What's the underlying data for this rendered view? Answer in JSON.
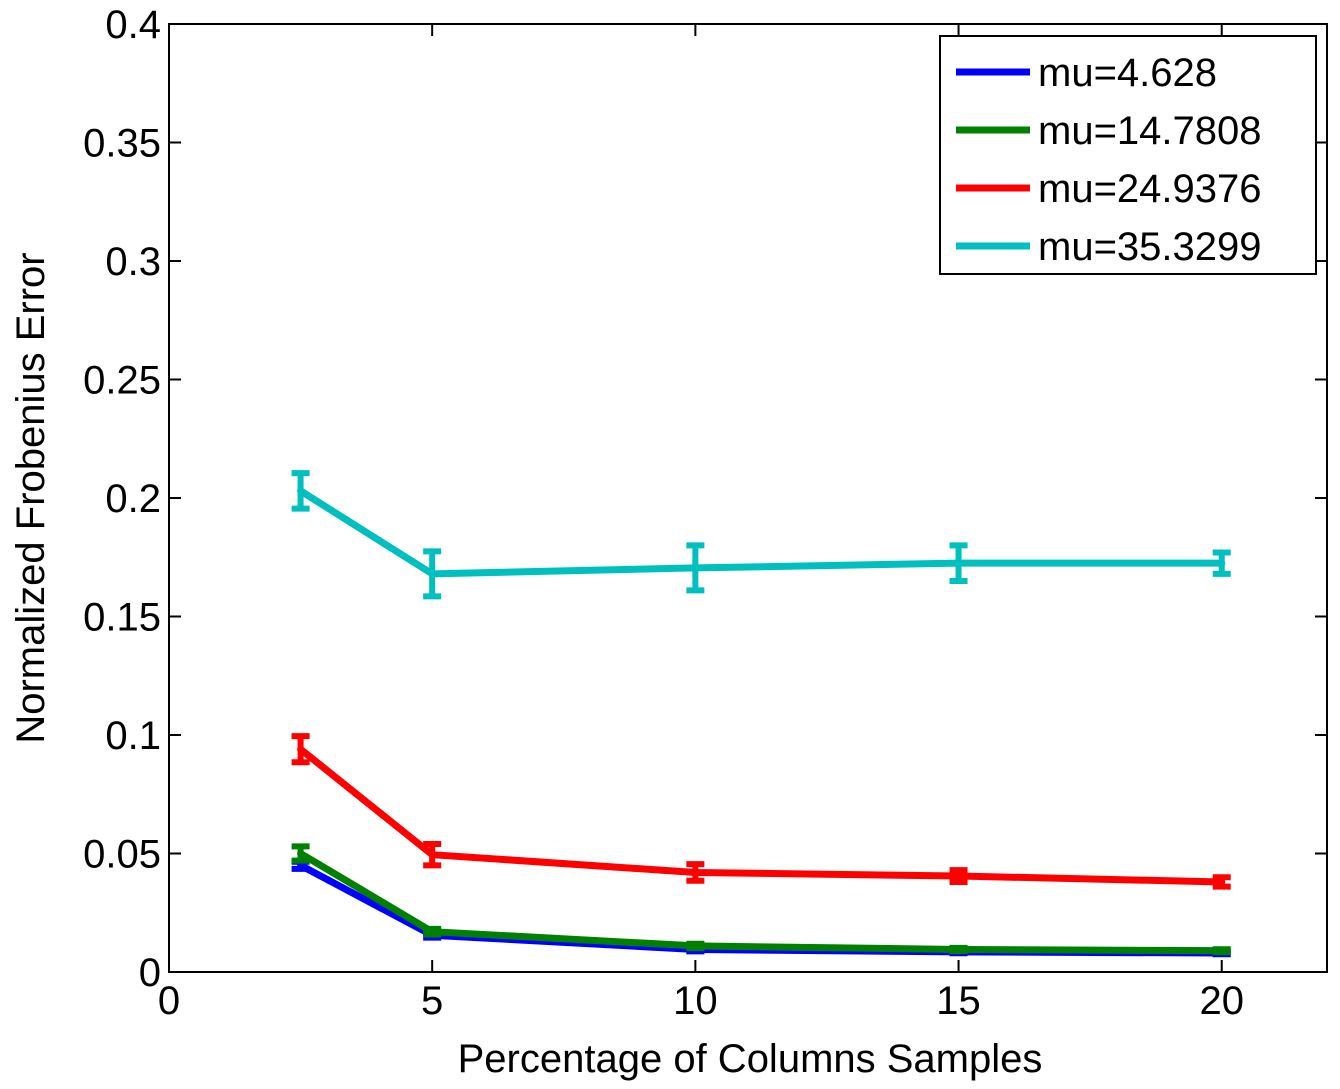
{
  "chart_data": {
    "type": "line",
    "xlabel": "Percentage of Columns Samples",
    "ylabel": "Normalized Frobenius Error",
    "xlim": [
      0,
      22
    ],
    "ylim": [
      0,
      0.4
    ],
    "x_ticks": [
      0,
      5,
      10,
      15,
      20
    ],
    "x_tick_labels": [
      "0",
      "5",
      "10",
      "15",
      "20"
    ],
    "y_ticks": [
      0,
      0.05,
      0.1,
      0.15,
      0.2,
      0.25,
      0.3,
      0.35,
      0.4
    ],
    "y_tick_labels": [
      "0",
      "0.05",
      "0.1",
      "0.15",
      "0.2",
      "0.25",
      "0.3",
      "0.35",
      "0.4"
    ],
    "grid": false,
    "legend_position": "top-right",
    "x": [
      2.5,
      5,
      10,
      15,
      20
    ],
    "series": [
      {
        "name": "mu=4.628",
        "color": "#0000ff",
        "values": [
          0.045,
          0.0155,
          0.0095,
          0.0085,
          0.008
        ],
        "errors": [
          0.0015,
          0.001,
          0.0008,
          0.0006,
          0.0005
        ]
      },
      {
        "name": "mu=14.7808",
        "color": "#008000",
        "values": [
          0.05,
          0.017,
          0.011,
          0.0095,
          0.009
        ],
        "errors": [
          0.003,
          0.0012,
          0.0009,
          0.0007,
          0.0006
        ]
      },
      {
        "name": "mu=24.9376",
        "color": "#ff0000",
        "values": [
          0.094,
          0.0495,
          0.042,
          0.0405,
          0.038
        ],
        "errors": [
          0.0055,
          0.0045,
          0.0035,
          0.0025,
          0.002
        ]
      },
      {
        "name": "mu=35.3299",
        "color": "#00bfbf",
        "values": [
          0.203,
          0.168,
          0.1705,
          0.1725,
          0.1725
        ],
        "errors": [
          0.0075,
          0.0095,
          0.0095,
          0.0075,
          0.0045
        ]
      }
    ]
  }
}
